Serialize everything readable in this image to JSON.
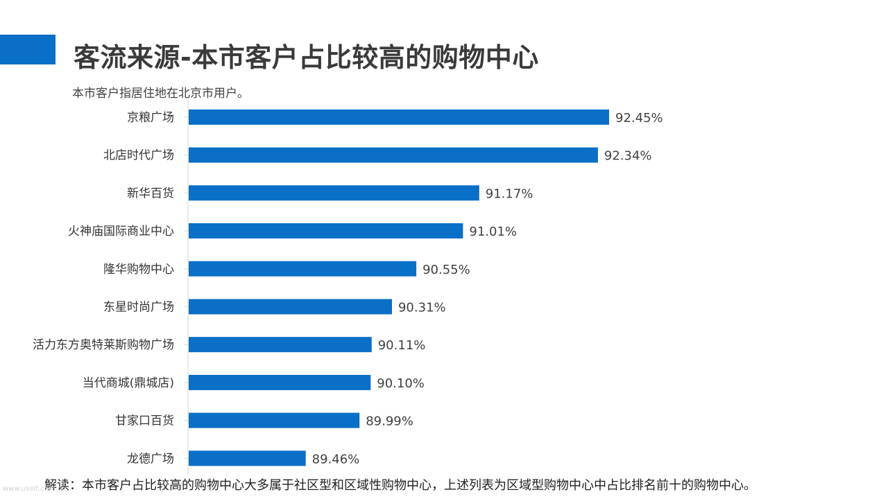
{
  "slide": {
    "title": "客流来源-本市客户占比较高的购物中心",
    "subtitle": "本市客户指居住地在北京市用户。",
    "footnote": "解读：本市客户占比较高的购物中心大多属于社区型和区域性购物中心，上述列表为区域型购物中心中占比排名前十的购物中心。",
    "watermark": "www.useit.com.cn",
    "accent_color": "#0a6fc7"
  },
  "chart_data": {
    "type": "bar",
    "orientation": "horizontal",
    "categories": [
      "京粮广场",
      "北店时代广场",
      "新华百货",
      "火神庙国际商业中心",
      "隆华购物中心",
      "东星时尚广场",
      "活力东方奥特莱斯购物广场",
      "当代商城(鼎城店)",
      "甘家口百货",
      "龙德广场"
    ],
    "values": [
      92.45,
      92.34,
      91.17,
      91.01,
      90.55,
      90.31,
      90.11,
      90.1,
      89.99,
      89.46
    ],
    "value_labels": [
      "92.45%",
      "92.34%",
      "91.17%",
      "91.01%",
      "90.55%",
      "90.31%",
      "90.11%",
      "90.10%",
      "89.99%",
      "89.46%"
    ],
    "unit": "%",
    "xlim": [
      88.3,
      92.45
    ],
    "bar_color": "#0a6fc7",
    "grid": false,
    "legend": "none"
  }
}
